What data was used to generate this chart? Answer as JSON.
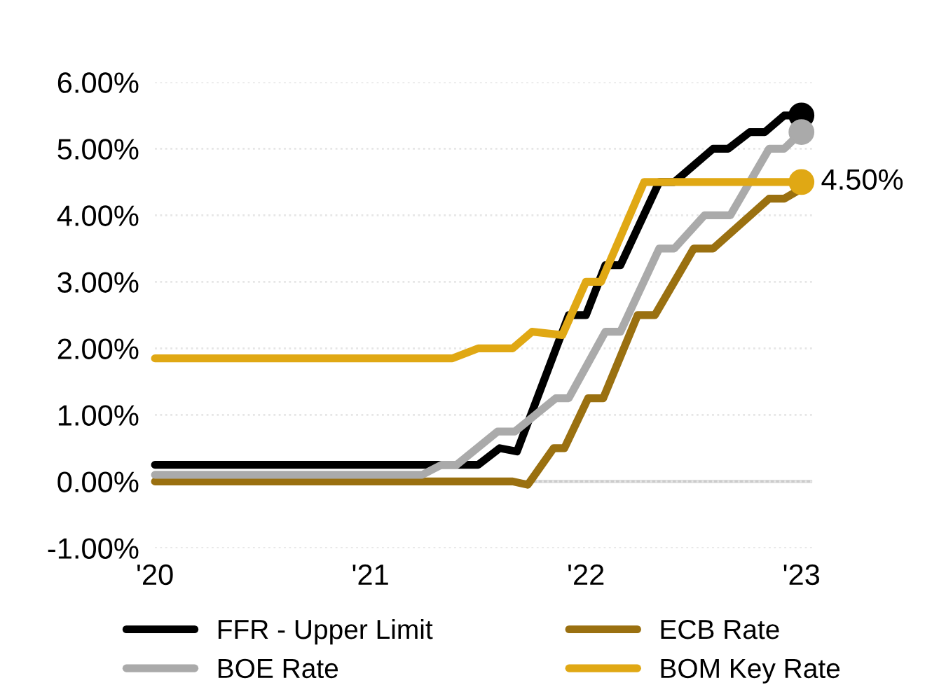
{
  "chart_data": {
    "type": "line",
    "xlim": [
      2020,
      2023.05
    ],
    "ylim": [
      -1,
      6
    ],
    "xticks": [
      {
        "value": 2020,
        "label": "'20"
      },
      {
        "value": 2021,
        "label": "'21"
      },
      {
        "value": 2022,
        "label": "'22"
      },
      {
        "value": 2023,
        "label": "'23"
      }
    ],
    "yticks": [
      {
        "value": -1,
        "label": "-1.00%"
      },
      {
        "value": 0,
        "label": "0.00%"
      },
      {
        "value": 1,
        "label": "1.00%"
      },
      {
        "value": 2,
        "label": "2.00%"
      },
      {
        "value": 3,
        "label": "3.00%"
      },
      {
        "value": 4,
        "label": "4.00%"
      },
      {
        "value": 5,
        "label": "5.00%"
      },
      {
        "value": 6,
        "label": "6.00%"
      }
    ],
    "grid": "y",
    "legend": "bottom",
    "line_style": "solid",
    "ref_lines": [
      {
        "axis": "y",
        "value": 0,
        "color": "#cccccc"
      }
    ],
    "annotations": [
      {
        "text": "4.50%",
        "x": 2023,
        "y": 4.5
      }
    ],
    "series": [
      {
        "name": "FFR - Upper Limit",
        "color": "#000000",
        "x": [
          2020,
          2021.47,
          2021.5,
          2021.6,
          2021.68,
          2021.92,
          2022.0,
          2022.09,
          2022.16,
          2022.34,
          2022.41,
          2022.59,
          2022.66,
          2022.76,
          2022.83,
          2022.92,
          2023
        ],
        "values": [
          0.25,
          0.25,
          0.25,
          0.5,
          0.45,
          2.5,
          2.5,
          3.25,
          3.25,
          4.5,
          4.5,
          5.0,
          5.0,
          5.25,
          5.25,
          5.5,
          5.5
        ]
      },
      {
        "name": "ECB Rate",
        "color": "#9a7010",
        "x": [
          2020,
          2021.66,
          2021.73,
          2021.85,
          2021.9,
          2022.01,
          2022.08,
          2022.24,
          2022.32,
          2022.5,
          2022.59,
          2022.85,
          2022.92,
          2023
        ],
        "values": [
          0,
          0,
          -0.05,
          0.5,
          0.5,
          1.25,
          1.25,
          2.5,
          2.5,
          3.5,
          3.5,
          4.25,
          4.25,
          4.4
        ]
      },
      {
        "name": "BOE Rate",
        "color": "#aaaaaa",
        "x": [
          2020,
          2021.24,
          2021.33,
          2021.4,
          2021.59,
          2021.67,
          2021.86,
          2021.92,
          2022.09,
          2022.16,
          2022.34,
          2022.41,
          2022.55,
          2022.67,
          2022.85,
          2022.92,
          2023
        ],
        "values": [
          0.1,
          0.1,
          0.25,
          0.25,
          0.75,
          0.75,
          1.25,
          1.25,
          2.25,
          2.25,
          3.5,
          3.5,
          4.0,
          4.0,
          5.0,
          5.0,
          5.25
        ]
      },
      {
        "name": "BOM Key Rate",
        "color": "#e0a814",
        "x": [
          2020,
          2021.38,
          2021.5,
          2021.66,
          2021.75,
          2021.89,
          2022.0,
          2022.07,
          2022.27,
          2023
        ],
        "values": [
          1.85,
          1.85,
          2.0,
          2.0,
          2.25,
          2.2,
          3.0,
          3.0,
          4.5,
          4.5
        ]
      },
      {
        "type": "scatter",
        "color": "#000000",
        "x": [
          2023
        ],
        "values": [
          5.5
        ]
      },
      {
        "type": "scatter",
        "color": "#aaaaaa",
        "x": [
          2023
        ],
        "values": [
          5.25
        ]
      },
      {
        "type": "scatter",
        "color": "#e0a814",
        "x": [
          2023
        ],
        "values": [
          4.5
        ]
      }
    ]
  }
}
